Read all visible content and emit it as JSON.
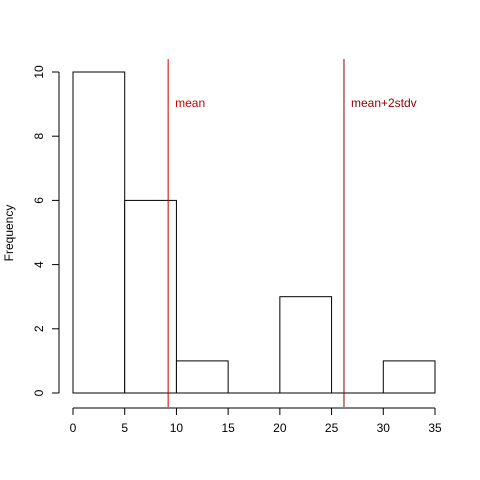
{
  "chart_data": {
    "type": "bar",
    "title": "",
    "xlabel": "",
    "ylabel": "Frequency",
    "xlim": [
      0,
      35
    ],
    "ylim": [
      0,
      10
    ],
    "bins": [
      {
        "start": 0,
        "end": 5,
        "count": 10
      },
      {
        "start": 5,
        "end": 10,
        "count": 6
      },
      {
        "start": 10,
        "end": 15,
        "count": 1
      },
      {
        "start": 15,
        "end": 20,
        "count": 0
      },
      {
        "start": 20,
        "end": 25,
        "count": 3
      },
      {
        "start": 25,
        "end": 30,
        "count": 0
      },
      {
        "start": 30,
        "end": 35,
        "count": 1
      }
    ],
    "x_ticks": [
      0,
      5,
      10,
      15,
      20,
      25,
      30,
      35
    ],
    "y_ticks": [
      0,
      2,
      4,
      6,
      8,
      10
    ],
    "reference_lines": [
      {
        "label": "mean",
        "value": 9.2,
        "color": "#cc0000"
      },
      {
        "label": "mean+2stdv",
        "value": 26.2,
        "color": "#8b0000"
      }
    ],
    "bar_fill": "#ffffff",
    "bar_stroke": "#000000",
    "grid": false
  }
}
